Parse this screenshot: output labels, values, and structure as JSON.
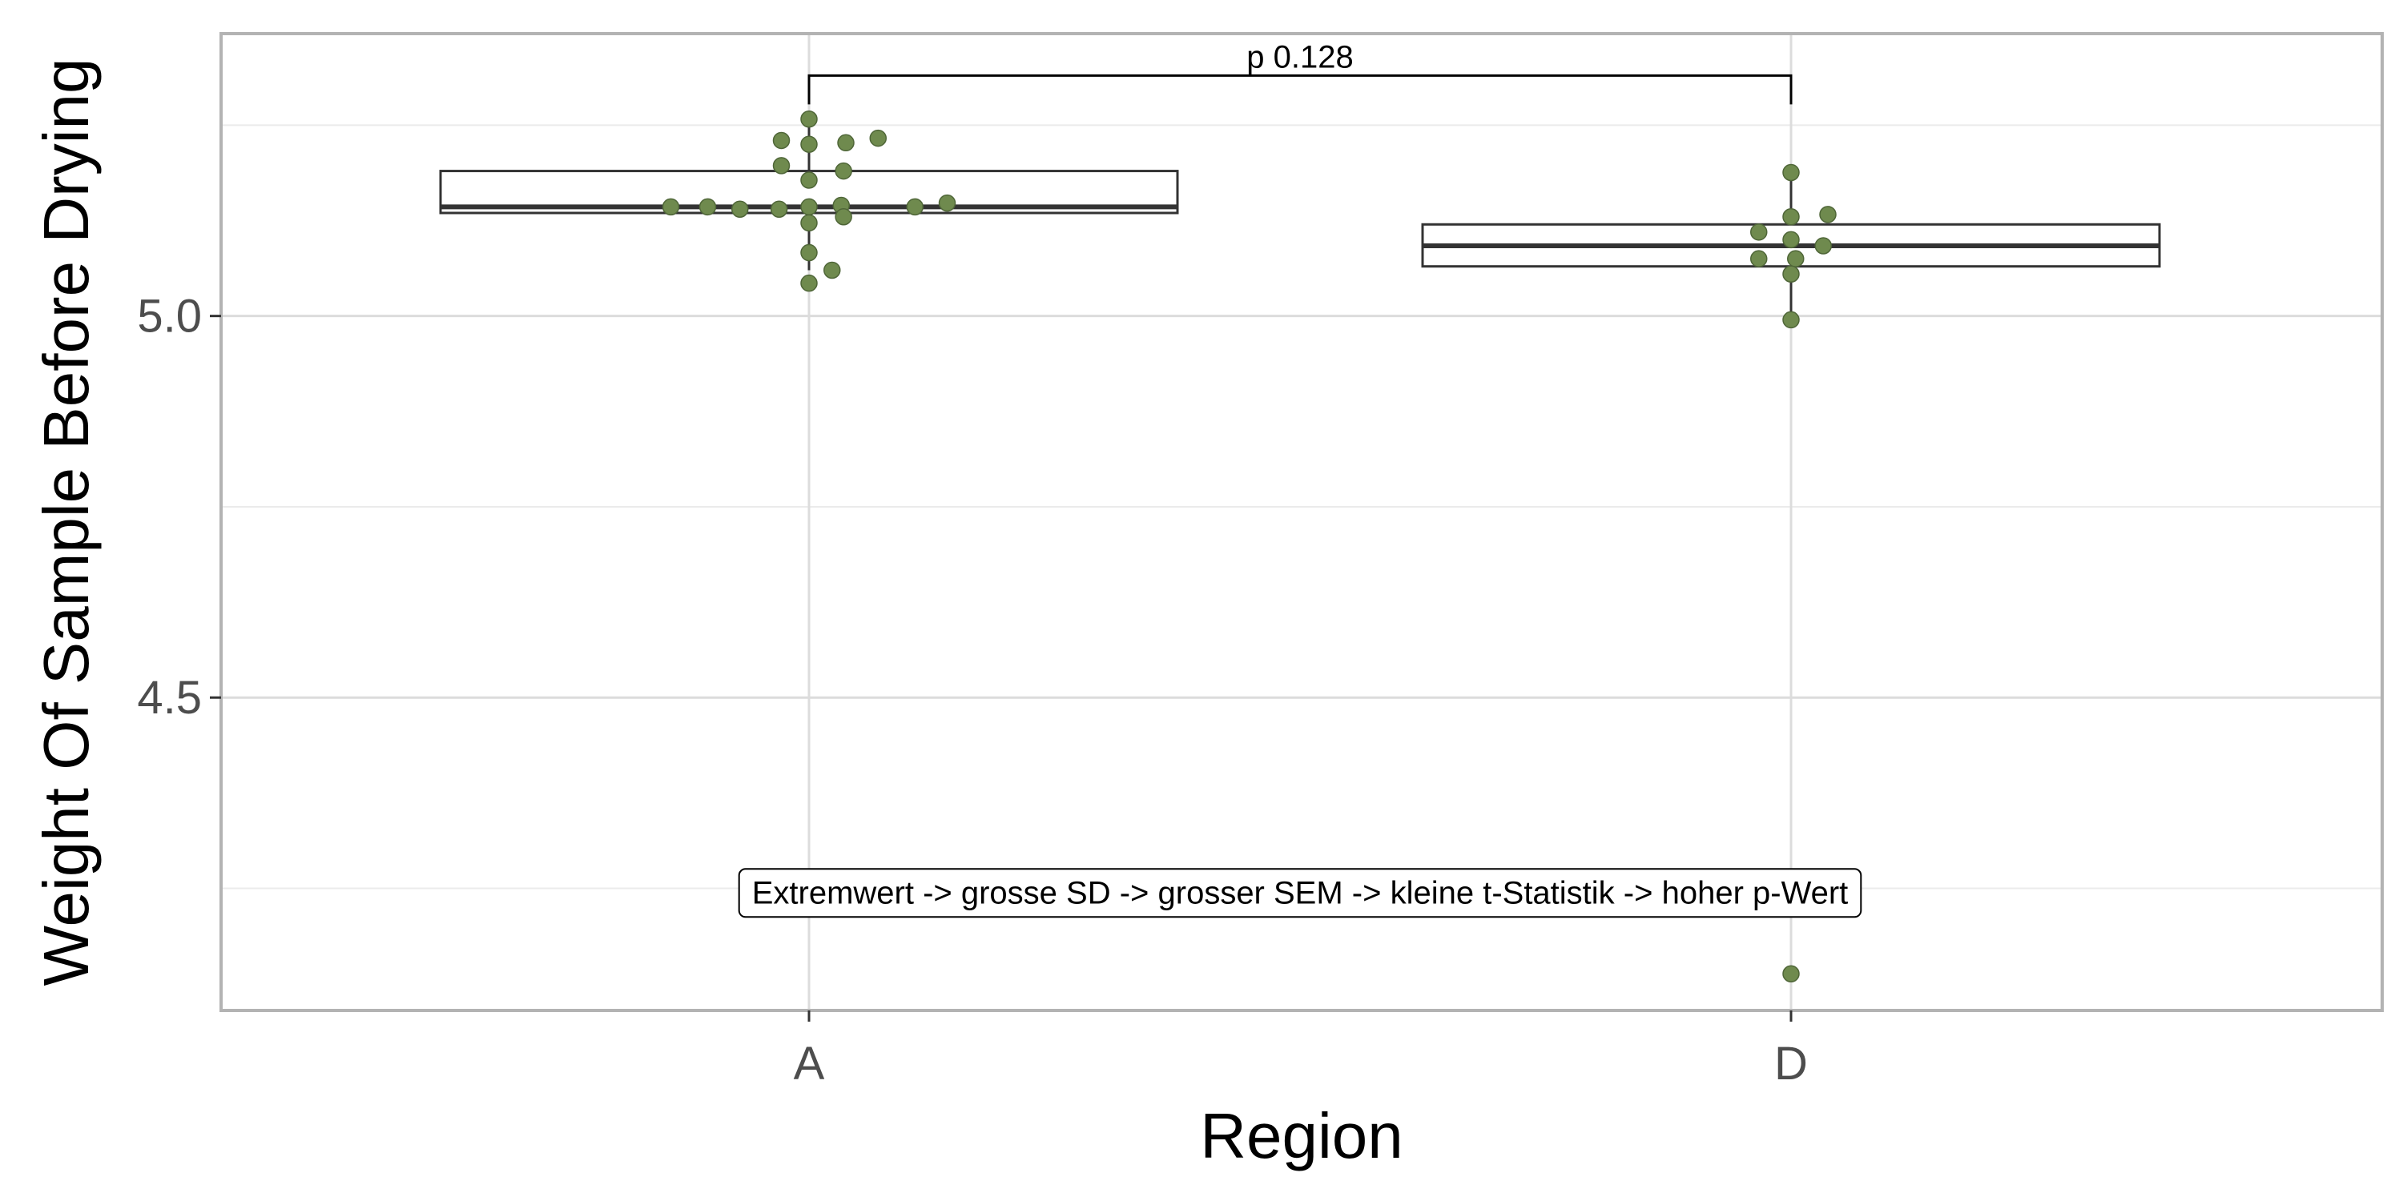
{
  "chart_data": {
    "type": "boxplot",
    "title": "",
    "xlabel": "Region",
    "ylabel": "Weight Of Sample Before Drying",
    "categories": [
      "A",
      "D"
    ],
    "ylim": [
      4.09,
      5.37
    ],
    "y_ticks": [
      4.5,
      5.0
    ],
    "y_tick_labels": [
      "4.5",
      "5.0"
    ],
    "y_minor_gridlines": [
      4.25,
      4.75,
      5.25
    ],
    "grid": true,
    "point_color": "#6f8a4e",
    "boxes": [
      {
        "category": "A",
        "q1": 5.135,
        "median": 5.143,
        "q3": 5.19,
        "whisker_low": 5.06,
        "whisker_high": 5.258
      },
      {
        "category": "D",
        "q1": 5.065,
        "median": 5.092,
        "q3": 5.12,
        "whisker_low": 4.995,
        "whisker_high": 5.188
      }
    ],
    "points": [
      {
        "category": "A",
        "values": [
          5.258,
          5.23,
          5.233,
          5.225,
          5.227,
          5.197,
          5.19,
          5.178,
          5.148,
          5.143,
          5.143,
          5.14,
          5.14,
          5.143,
          5.145,
          5.143,
          5.13,
          5.122,
          5.083,
          5.06,
          5.043
        ],
        "offsets": [
          0,
          -0.06,
          0.15,
          0,
          0.08,
          -0.06,
          0.075,
          0,
          0.3,
          -0.3,
          -0.22,
          -0.15,
          -0.065,
          0,
          0.07,
          0.23,
          0.075,
          0,
          0,
          0.05,
          0
        ]
      },
      {
        "category": "D",
        "values": [
          5.188,
          5.133,
          5.13,
          5.11,
          5.1,
          5.092,
          5.075,
          5.075,
          5.055,
          4.995,
          4.138
        ],
        "offsets": [
          0,
          0.08,
          0,
          -0.07,
          0,
          0.07,
          -0.07,
          0.01,
          0,
          0,
          0
        ]
      }
    ],
    "significance": {
      "from": "A",
      "to": "D",
      "label": "p 0.128",
      "y": 5.315
    },
    "annotation": {
      "text": "Extremwert -> grosse SD -> grosser SEM -> kleine t-Statistik -> hoher p-Wert",
      "x_between": [
        "A",
        "D"
      ],
      "y": 4.245
    }
  }
}
